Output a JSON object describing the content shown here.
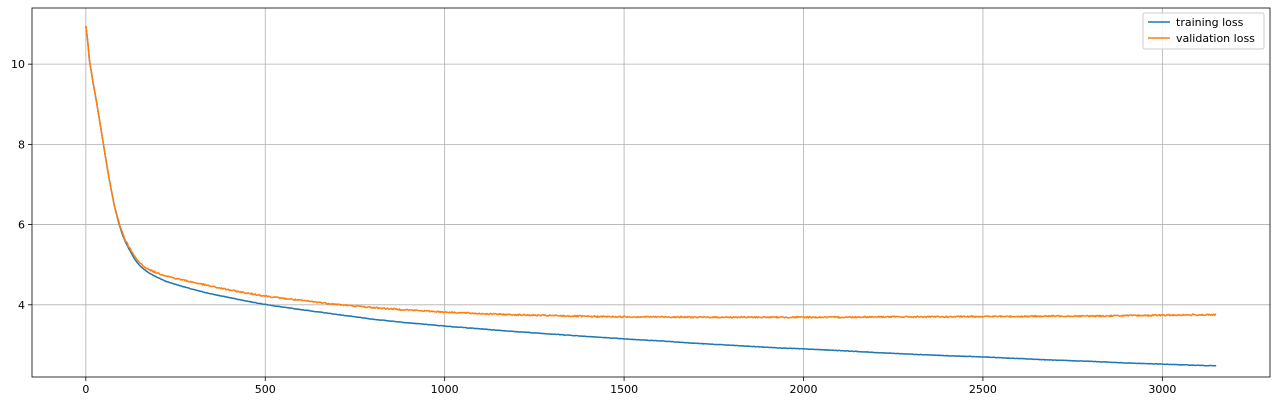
{
  "chart_data": {
    "type": "line",
    "title": "",
    "xlabel": "",
    "ylabel": "",
    "xlim": [
      -150,
      3300
    ],
    "ylim": [
      2.2,
      11.4
    ],
    "grid": true,
    "legend_position": "top-right",
    "x_ticks": [
      0,
      500,
      1000,
      1500,
      2000,
      2500,
      3000
    ],
    "x_tick_labels": [
      "0",
      "500",
      "1000",
      "1500",
      "2000",
      "2500",
      "3000"
    ],
    "y_ticks": [
      4,
      6,
      8,
      10
    ],
    "y_tick_labels": [
      "4",
      "6",
      "8",
      "10"
    ],
    "series": [
      {
        "name": "training loss",
        "color": "#1f77b4",
        "x": [
          0,
          5,
          10,
          20,
          30,
          40,
          50,
          60,
          70,
          80,
          90,
          100,
          110,
          120,
          130,
          140,
          150,
          160,
          175,
          200,
          225,
          250,
          300,
          350,
          400,
          450,
          500,
          550,
          600,
          700,
          800,
          900,
          1000,
          1100,
          1200,
          1300,
          1400,
          1500,
          1600,
          1700,
          1800,
          1900,
          2000,
          2100,
          2200,
          2300,
          2400,
          2500,
          2600,
          2700,
          2800,
          2900,
          3000,
          3100,
          3150
        ],
        "y": [
          10.95,
          10.6,
          10.1,
          9.55,
          9.05,
          8.5,
          7.95,
          7.4,
          6.9,
          6.45,
          6.1,
          5.8,
          5.58,
          5.4,
          5.23,
          5.09,
          4.98,
          4.9,
          4.8,
          4.68,
          4.58,
          4.51,
          4.38,
          4.27,
          4.18,
          4.09,
          4.01,
          3.94,
          3.88,
          3.76,
          3.64,
          3.55,
          3.47,
          3.4,
          3.33,
          3.27,
          3.21,
          3.15,
          3.1,
          3.04,
          2.99,
          2.94,
          2.9,
          2.86,
          2.81,
          2.77,
          2.73,
          2.7,
          2.66,
          2.62,
          2.59,
          2.55,
          2.52,
          2.49,
          2.48
        ]
      },
      {
        "name": "validation loss",
        "color": "#ff7f0e",
        "x": [
          0,
          5,
          10,
          20,
          30,
          40,
          50,
          60,
          70,
          80,
          90,
          100,
          110,
          120,
          130,
          140,
          150,
          160,
          175,
          200,
          225,
          250,
          300,
          350,
          400,
          450,
          500,
          550,
          600,
          700,
          800,
          900,
          1000,
          1100,
          1200,
          1300,
          1400,
          1500,
          1600,
          1700,
          1800,
          1900,
          2000,
          2100,
          2200,
          2300,
          2400,
          2500,
          2600,
          2700,
          2800,
          2900,
          3000,
          3100,
          3150
        ],
        "y": [
          10.95,
          10.6,
          10.1,
          9.55,
          9.05,
          8.5,
          7.95,
          7.4,
          6.9,
          6.45,
          6.12,
          5.85,
          5.62,
          5.45,
          5.29,
          5.15,
          5.05,
          4.97,
          4.88,
          4.79,
          4.72,
          4.66,
          4.56,
          4.46,
          4.37,
          4.29,
          4.22,
          4.16,
          4.11,
          4.01,
          3.93,
          3.87,
          3.82,
          3.78,
          3.75,
          3.73,
          3.71,
          3.7,
          3.7,
          3.69,
          3.69,
          3.69,
          3.69,
          3.69,
          3.7,
          3.7,
          3.7,
          3.71,
          3.71,
          3.72,
          3.72,
          3.73,
          3.74,
          3.75,
          3.75
        ]
      }
    ]
  }
}
